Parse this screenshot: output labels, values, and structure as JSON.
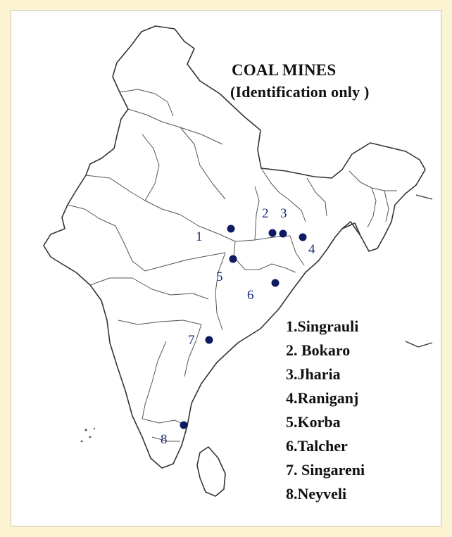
{
  "title": "COAL MINES",
  "subtitle": "(Identification only )",
  "legend": [
    "1.Singrauli",
    "2. Bokaro",
    "3.Jharia",
    "4.Raniganj",
    "5.Korba",
    "6.Talcher",
    "7. Singareni",
    "8.Neyveli"
  ],
  "mines": [
    {
      "number": "1",
      "name": "Singrauli"
    },
    {
      "number": "2",
      "name": "Bokaro"
    },
    {
      "number": "3",
      "name": "Jharia"
    },
    {
      "number": "4",
      "name": "Raniganj"
    },
    {
      "number": "5",
      "name": "Korba"
    },
    {
      "number": "6",
      "name": "Talcher"
    },
    {
      "number": "7",
      "name": "Singareni"
    },
    {
      "number": "8",
      "name": "Neyveli"
    }
  ],
  "colors": {
    "background": "#fbf3d2",
    "marker": "#0d1b62",
    "number_label": "#1b2c7a",
    "outline": "#333333"
  }
}
